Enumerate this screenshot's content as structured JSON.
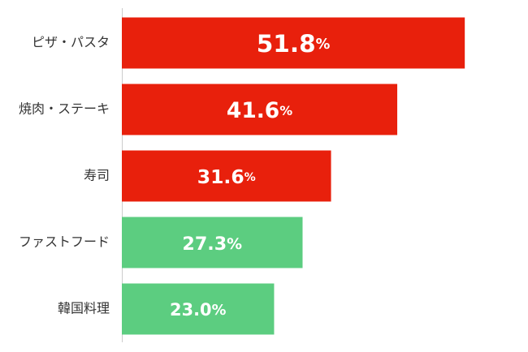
{
  "chart_data": {
    "type": "barh",
    "categories": [
      "ピザ・パスタ",
      "焼肉・ステーキ",
      "寿司",
      "ファストフード",
      "韓国料理"
    ],
    "values": [
      51.8,
      41.6,
      31.6,
      27.3,
      23.0
    ],
    "value_labels": [
      "51.8%",
      "41.6%",
      "31.6%",
      "27.3%",
      "23.0%"
    ],
    "colors": [
      "#e8200c",
      "#e8200c",
      "#e8200c",
      "#5ccd80",
      "#5ccd80"
    ],
    "xlim": [
      0,
      60
    ]
  }
}
